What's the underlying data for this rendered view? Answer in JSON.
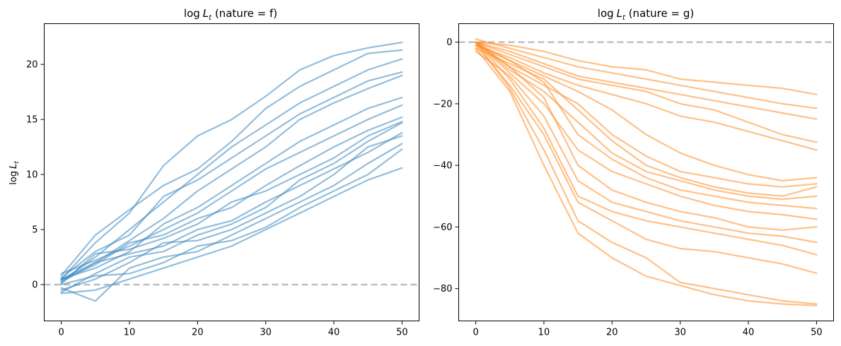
{
  "chart_data": [
    {
      "type": "line",
      "title_prefix": "log",
      "title_var": "L",
      "title_sub": "t",
      "title_suffix": " (nature = f)",
      "ylabel_prefix": "log",
      "ylabel_var": "L",
      "ylabel_sub": "t",
      "xlim": [
        -2.5,
        52.5
      ],
      "ylim": [
        -3.3,
        23.7
      ],
      "xticks": [
        0,
        10,
        20,
        30,
        40,
        50
      ],
      "yticks": [
        0,
        5,
        10,
        15,
        20
      ],
      "reference_line_y": 0,
      "color": "#3a87bf",
      "opacity": 0.55,
      "grid": false,
      "x": [
        0,
        5,
        10,
        15,
        20,
        25,
        30,
        35,
        40,
        45,
        50
      ],
      "series": [
        {
          "values": [
            0.5,
            3.8,
            6.5,
            10.8,
            13.5,
            15.0,
            17.1,
            19.5,
            20.8,
            21.5,
            22.0
          ]
        },
        {
          "values": [
            0.8,
            4.5,
            6.8,
            9.0,
            10.5,
            13.0,
            16.0,
            18.0,
            19.5,
            21.0,
            21.3
          ]
        },
        {
          "values": [
            0.3,
            2.5,
            5.0,
            7.5,
            10.0,
            12.5,
            14.5,
            16.5,
            18.0,
            19.5,
            20.5
          ]
        },
        {
          "values": [
            0.6,
            3.0,
            4.5,
            8.0,
            9.5,
            11.5,
            13.5,
            15.5,
            17.0,
            18.5,
            19.3
          ]
        },
        {
          "values": [
            0.2,
            2.0,
            4.0,
            6.0,
            8.5,
            10.5,
            12.5,
            15.0,
            16.5,
            17.8,
            19.0
          ]
        },
        {
          "values": [
            0.5,
            1.5,
            3.0,
            5.5,
            7.0,
            9.0,
            11.0,
            13.0,
            14.5,
            16.0,
            17.0
          ]
        },
        {
          "values": [
            1.0,
            2.2,
            3.5,
            5.0,
            6.5,
            8.5,
            10.5,
            12.0,
            13.5,
            15.0,
            16.3
          ]
        },
        {
          "values": [
            0.4,
            1.8,
            3.8,
            4.5,
            6.0,
            7.0,
            9.0,
            10.8,
            12.5,
            14.0,
            15.2
          ]
        },
        {
          "values": [
            0.1,
            2.8,
            3.2,
            4.2,
            5.5,
            7.5,
            8.5,
            10.0,
            11.5,
            13.5,
            14.8
          ]
        },
        {
          "values": [
            -0.7,
            1.0,
            2.5,
            3.0,
            4.5,
            5.5,
            7.0,
            9.5,
            11.0,
            13.0,
            14.7
          ]
        },
        {
          "values": [
            0.5,
            2.0,
            2.8,
            3.5,
            5.0,
            5.8,
            7.5,
            9.0,
            10.5,
            12.0,
            13.8
          ]
        },
        {
          "values": [
            -0.5,
            0.5,
            2.0,
            3.8,
            4.0,
            5.0,
            6.5,
            8.0,
            10.0,
            12.5,
            13.5
          ]
        },
        {
          "values": [
            -0.3,
            -1.5,
            1.5,
            2.5,
            3.0,
            4.5,
            6.0,
            7.5,
            9.0,
            11.0,
            12.8
          ]
        },
        {
          "values": [
            0.0,
            0.8,
            1.0,
            2.0,
            3.5,
            4.0,
            5.2,
            7.0,
            8.5,
            10.0,
            12.3
          ]
        },
        {
          "values": [
            -0.8,
            -0.5,
            0.5,
            1.5,
            2.5,
            3.5,
            5.0,
            6.5,
            8.0,
            9.5,
            10.6
          ]
        }
      ]
    },
    {
      "type": "line",
      "title_prefix": "log",
      "title_var": "L",
      "title_sub": "t",
      "title_suffix": " (nature = g)",
      "xlim": [
        -2.5,
        52.5
      ],
      "ylim": [
        -90.5,
        6.0
      ],
      "xticks": [
        0,
        10,
        20,
        30,
        40,
        50
      ],
      "yticks": [
        0,
        -20,
        -40,
        -60,
        -80
      ],
      "reference_line_y": 0,
      "color": "#ff8c27",
      "opacity": 0.55,
      "grid": false,
      "x": [
        0,
        5,
        10,
        15,
        20,
        25,
        30,
        35,
        40,
        45,
        50
      ],
      "series": [
        {
          "values": [
            0,
            -1,
            -3,
            -6,
            -8,
            -9,
            -12,
            -13,
            -14,
            -15,
            -17
          ]
        },
        {
          "values": [
            1,
            -2,
            -5,
            -8,
            -10,
            -12,
            -14,
            -16,
            -18,
            -20,
            -21.5
          ]
        },
        {
          "values": [
            0,
            -3,
            -7,
            -11,
            -13,
            -15,
            -17,
            -19,
            -21,
            -23,
            -25
          ]
        },
        {
          "values": [
            0,
            -4,
            -8,
            -12,
            -14,
            -16,
            -20,
            -22,
            -26,
            -30,
            -32.5
          ]
        },
        {
          "values": [
            -1,
            -5,
            -10,
            -14,
            -17,
            -20,
            -24,
            -26,
            -29,
            -32,
            -35
          ]
        },
        {
          "values": [
            0,
            -6,
            -11,
            -16,
            -22,
            -30,
            -36,
            -40,
            -43,
            -45,
            -44
          ]
        },
        {
          "values": [
            0,
            -8,
            -14,
            -20,
            -30,
            -37,
            -42,
            -44,
            -46,
            -47,
            -46
          ]
        },
        {
          "values": [
            -2,
            -7,
            -12,
            -22,
            -32,
            -40,
            -44,
            -47,
            -49,
            -50,
            -47
          ]
        },
        {
          "values": [
            0,
            -9,
            -16,
            -26,
            -36,
            -42,
            -45,
            -48,
            -50,
            -51,
            -50
          ]
        },
        {
          "values": [
            -1,
            -6,
            -13,
            -30,
            -38,
            -44,
            -48,
            -50,
            -52,
            -53,
            -54
          ]
        },
        {
          "values": [
            0,
            -10,
            -20,
            -35,
            -42,
            -46,
            -50,
            -53,
            -55,
            -56,
            -57.5
          ]
        },
        {
          "values": [
            0,
            -8,
            -18,
            -40,
            -48,
            -52,
            -55,
            -57,
            -60,
            -61,
            -60
          ]
        },
        {
          "values": [
            -3,
            -11,
            -24,
            -45,
            -52,
            -55,
            -58,
            -60,
            -62,
            -63,
            -65
          ]
        },
        {
          "values": [
            0,
            -12,
            -28,
            -50,
            -55,
            -58,
            -60,
            -62,
            -64,
            -66,
            -69
          ]
        },
        {
          "values": [
            -1,
            -14,
            -30,
            -52,
            -58,
            -64,
            -67,
            -68,
            -70,
            -72,
            -75
          ]
        },
        {
          "values": [
            0,
            -15,
            -35,
            -58,
            -65,
            -70,
            -78,
            -80,
            -82,
            -84,
            -85
          ]
        },
        {
          "values": [
            -2,
            -16,
            -40,
            -62,
            -70,
            -76,
            -79,
            -82,
            -84,
            -85,
            -85.5
          ]
        }
      ]
    }
  ]
}
